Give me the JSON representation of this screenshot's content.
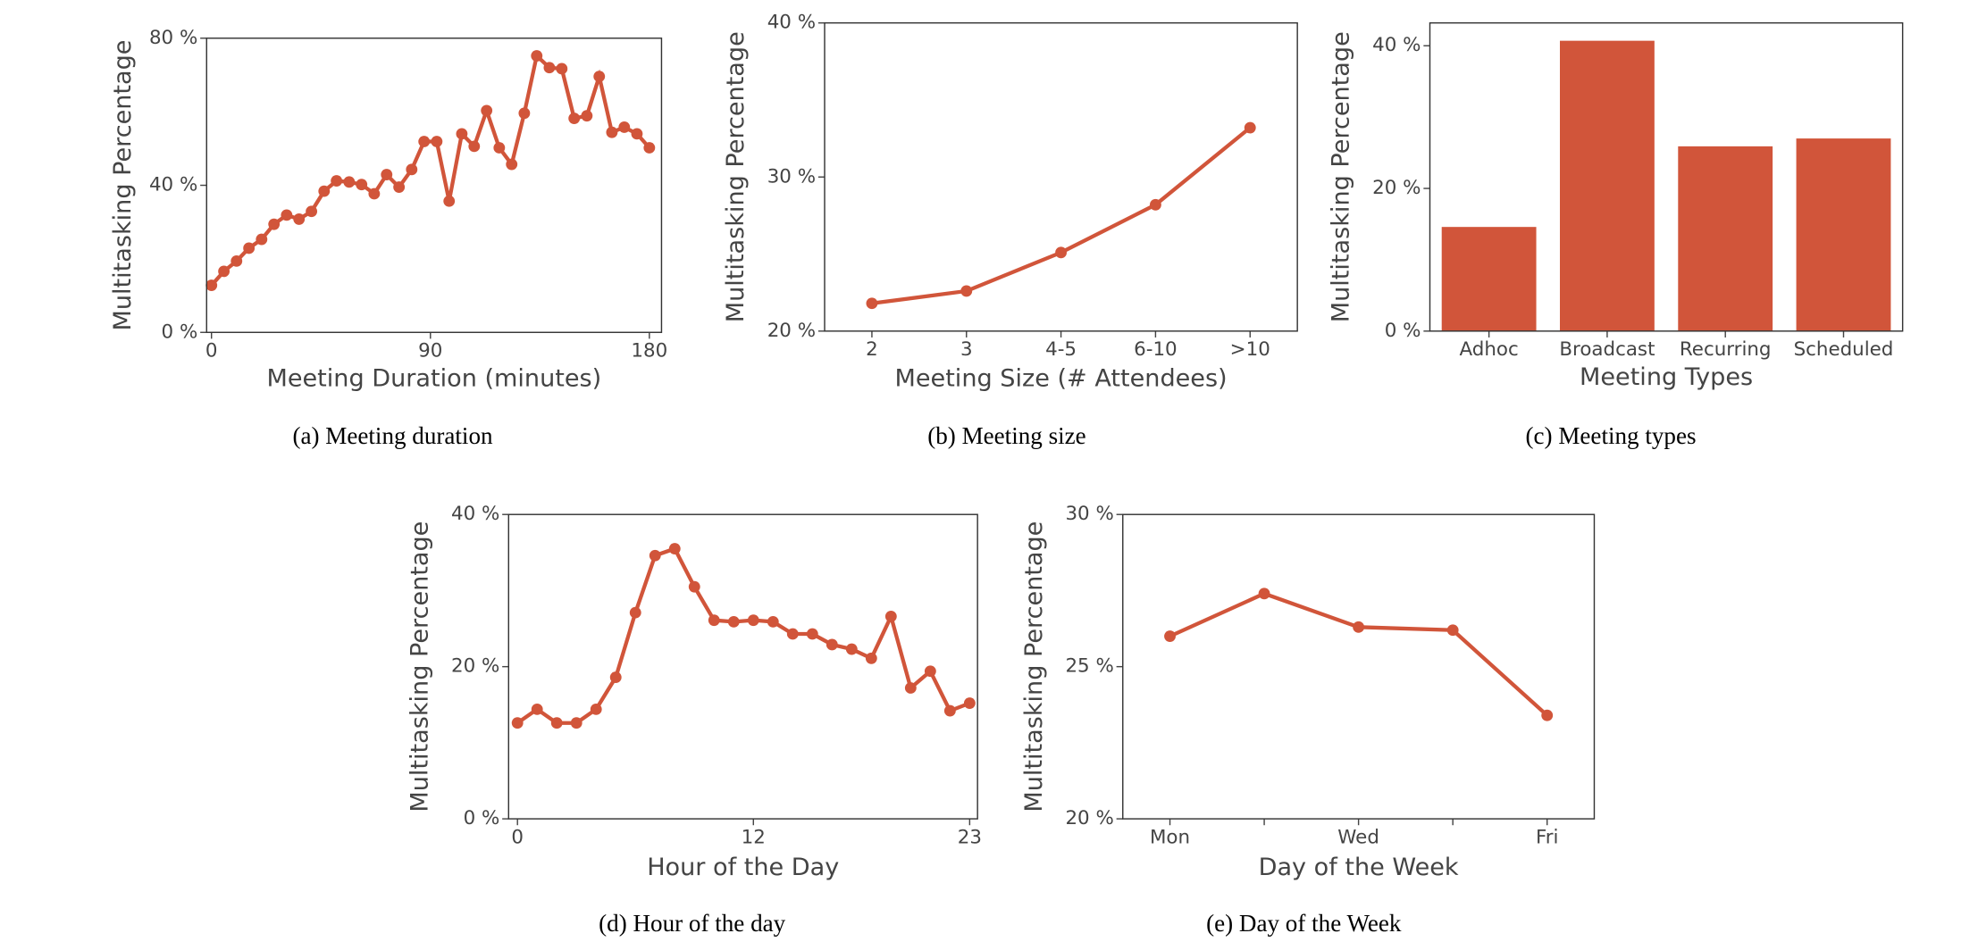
{
  "chart_data": [
    {
      "type": "line",
      "caption": "(a)  Meeting duration",
      "xlabel": "Meeting Duration (minutes)",
      "ylabel": "Multitasking Percentage",
      "color": "#d1553a",
      "x": [
        0,
        5.1,
        10.3,
        15.4,
        20.6,
        25.7,
        30.9,
        36,
        41.1,
        46.3,
        51.4,
        56.6,
        61.7,
        66.9,
        72,
        77.1,
        82.3,
        87.4,
        92.6,
        97.7,
        102.9,
        108,
        113.1,
        118.3,
        123.4,
        128.6,
        133.7,
        138.9,
        144,
        149.1,
        154.3,
        159.4,
        164.6,
        169.7,
        174.9,
        180
      ],
      "values": [
        12.8,
        16.6,
        19.4,
        22.9,
        25.3,
        29.4,
        31.9,
        30.8,
        32.9,
        38.4,
        41.2,
        40.9,
        40.2,
        37.7,
        42.9,
        39.5,
        44.3,
        51.9,
        51.9,
        35.7,
        54.0,
        50.6,
        60.3,
        50.2,
        45.7,
        59.6,
        75.2,
        72.0,
        71.7,
        58.2,
        58.9,
        69.6,
        54.4,
        55.8,
        54.0,
        50.2
      ],
      "xlim": [
        -2,
        185
      ],
      "xticks": [
        0,
        90,
        180
      ],
      "ylim": [
        0,
        80
      ],
      "yticks": [
        {
          "value": 0,
          "label": "0 %"
        },
        {
          "value": 40,
          "label": "40 %"
        },
        {
          "value": 80,
          "label": "80 %"
        }
      ]
    },
    {
      "type": "line",
      "caption": "(b)  Meeting size",
      "xlabel": "Meeting Size (# Attendees)",
      "ylabel": "Multitasking Percentage",
      "color": "#d1553a",
      "categories": [
        "2",
        "3",
        "4-5",
        "6-10",
        ">10"
      ],
      "values": [
        21.8,
        22.6,
        25.1,
        28.2,
        33.2
      ],
      "ylim": [
        20,
        40
      ],
      "yticks": [
        {
          "value": 20,
          "label": "20 %"
        },
        {
          "value": 30,
          "label": "30 %"
        },
        {
          "value": 40,
          "label": "40 %"
        }
      ]
    },
    {
      "type": "bar",
      "caption": "(c)  Meeting types",
      "xlabel": "Meeting Types",
      "ylabel": "Multitasking Percentage",
      "color": "#d1553a",
      "categories": [
        "Adhoc",
        "Broadcast",
        "Recurring",
        "Scheduled"
      ],
      "values": [
        14.6,
        40.7,
        25.9,
        27.0
      ],
      "ylim": [
        0,
        43.2
      ],
      "yticks": [
        {
          "value": 0,
          "label": "0 %"
        },
        {
          "value": 20,
          "label": "20 %"
        },
        {
          "value": 40,
          "label": "40 %"
        }
      ]
    },
    {
      "type": "line",
      "caption": "(d)  Hour of the day",
      "xlabel": "Hour of the Day",
      "ylabel": "Multitasking Percentage",
      "color": "#d1553a",
      "x": [
        0,
        1,
        2,
        3,
        4,
        5,
        6,
        7,
        8,
        9,
        10,
        11,
        12,
        13,
        14,
        15,
        16,
        17,
        18,
        19,
        20,
        21,
        22,
        23
      ],
      "values": [
        12.6,
        14.4,
        12.6,
        12.6,
        14.4,
        18.6,
        27.1,
        34.6,
        35.5,
        30.5,
        26.1,
        25.9,
        26.1,
        25.9,
        24.3,
        24.3,
        22.9,
        22.3,
        21.1,
        26.6,
        17.2,
        19.4,
        14.2,
        15.2
      ],
      "xlim": [
        -0.45,
        23.4
      ],
      "xticks": [
        0,
        12,
        23
      ],
      "ylim": [
        0,
        40
      ],
      "yticks": [
        {
          "value": 0,
          "label": "0 %"
        },
        {
          "value": 20,
          "label": "20 %"
        },
        {
          "value": 40,
          "label": "40 %"
        }
      ]
    },
    {
      "type": "line",
      "caption": "(e)  Day of the Week",
      "xlabel": "Day of the Week",
      "ylabel": "Multitasking Percentage",
      "color": "#d1553a",
      "categories": [
        "Mon",
        null,
        "Wed",
        null,
        "Fri"
      ],
      "values": [
        26.0,
        27.4,
        26.3,
        26.2,
        23.4
      ],
      "ylim": [
        20,
        30
      ],
      "yticks": [
        {
          "value": 20,
          "label": "20 %"
        },
        {
          "value": 25,
          "label": "25 %"
        },
        {
          "value": 30,
          "label": "30 %"
        }
      ]
    }
  ]
}
